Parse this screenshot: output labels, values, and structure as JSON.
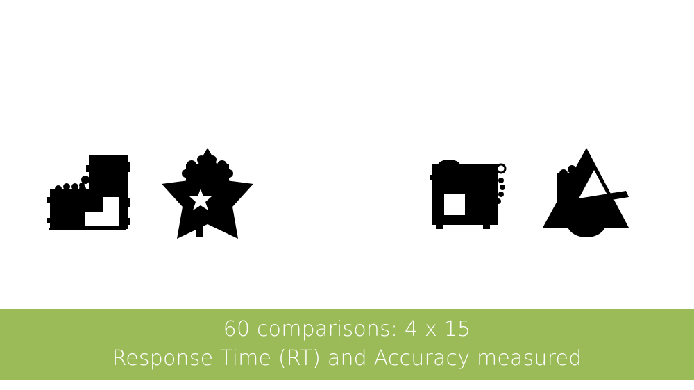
{
  "caption": {
    "line1": "60 comparisons: 4 x 15",
    "line2": "Response Time (RT) and Accuracy measured"
  },
  "colors": {
    "band": "#9bbb59",
    "caption_text": "#ffffff",
    "shape_fill": "#000000",
    "background": "#ffffff"
  },
  "stimuli": {
    "pairs": [
      {
        "left_shape": "block-composite-icon",
        "right_shape": "star-composite-icon"
      },
      {
        "left_shape": "square-composite-icon",
        "right_shape": "triangle-composite-icon"
      }
    ]
  }
}
